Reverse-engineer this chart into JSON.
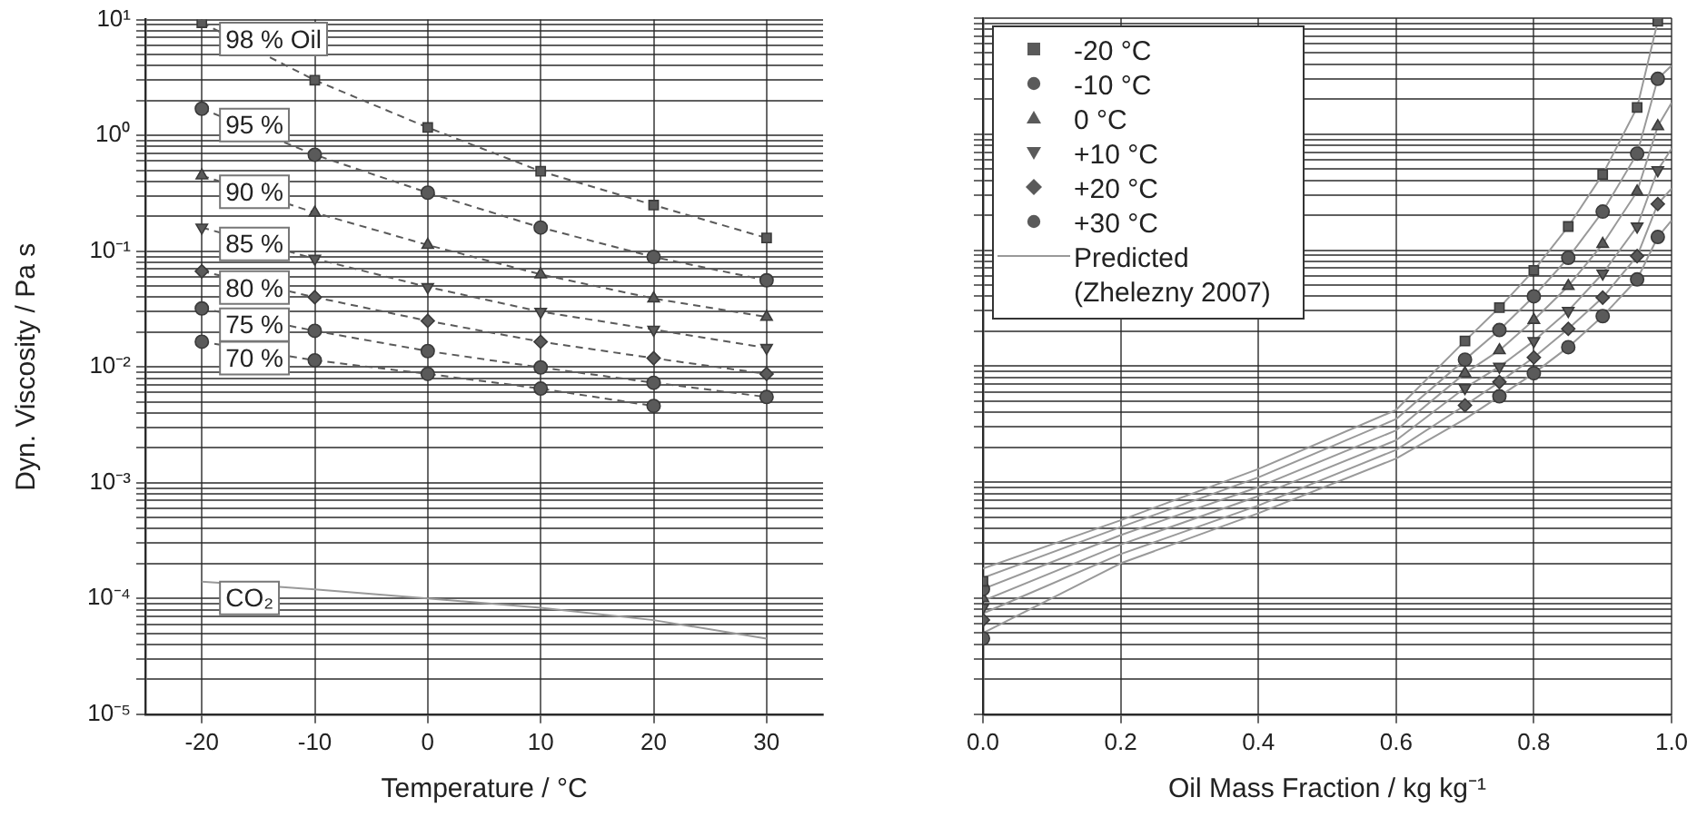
{
  "chart_data": [
    {
      "type": "line",
      "xlabel": "Temperature / °C",
      "ylabel": "Dyn. Viscosity / Pa s",
      "x": [
        -20,
        -10,
        0,
        10,
        20,
        30
      ],
      "xlim": [
        -25,
        35
      ],
      "xticks": [
        -20,
        -10,
        0,
        10,
        20,
        30
      ],
      "ylim": [
        1e-05,
        10
      ],
      "log": "y",
      "grid": true,
      "legend": false,
      "line_style": "dashed",
      "yticks": [
        {
          "value": 1e-05,
          "label": "10⁻⁵"
        },
        {
          "value": 2e-05,
          "label": null
        },
        {
          "value": 3e-05,
          "label": null
        },
        {
          "value": 4e-05,
          "label": null
        },
        {
          "value": 5e-05,
          "label": null
        },
        {
          "value": 6e-05,
          "label": null
        },
        {
          "value": 7e-05,
          "label": null
        },
        {
          "value": 8e-05,
          "label": null
        },
        {
          "value": 9e-05,
          "label": null
        },
        {
          "value": 0.0001,
          "label": "10⁻⁴"
        },
        {
          "value": 0.0002,
          "label": null
        },
        {
          "value": 0.0003,
          "label": null
        },
        {
          "value": 0.0004,
          "label": null
        },
        {
          "value": 0.0005,
          "label": null
        },
        {
          "value": 0.0006,
          "label": null
        },
        {
          "value": 0.0007,
          "label": null
        },
        {
          "value": 0.0008,
          "label": null
        },
        {
          "value": 0.0009,
          "label": null
        },
        {
          "value": 0.001,
          "label": "10⁻³"
        },
        {
          "value": 0.002,
          "label": null
        },
        {
          "value": 0.003,
          "label": null
        },
        {
          "value": 0.004,
          "label": null
        },
        {
          "value": 0.005,
          "label": null
        },
        {
          "value": 0.006,
          "label": null
        },
        {
          "value": 0.007,
          "label": null
        },
        {
          "value": 0.008,
          "label": null
        },
        {
          "value": 0.009,
          "label": null
        },
        {
          "value": 0.01,
          "label": "10⁻²"
        },
        {
          "value": 0.02,
          "label": null
        },
        {
          "value": 0.03,
          "label": null
        },
        {
          "value": 0.04,
          "label": null
        },
        {
          "value": 0.05,
          "label": null
        },
        {
          "value": 0.06,
          "label": null
        },
        {
          "value": 0.07,
          "label": null
        },
        {
          "value": 0.08,
          "label": null
        },
        {
          "value": 0.09,
          "label": null
        },
        {
          "value": 0.1,
          "label": "10⁻¹"
        },
        {
          "value": 0.2,
          "label": null
        },
        {
          "value": 0.3,
          "label": null
        },
        {
          "value": 0.4,
          "label": null
        },
        {
          "value": 0.5,
          "label": null
        },
        {
          "value": 0.6,
          "label": null
        },
        {
          "value": 0.7,
          "label": null
        },
        {
          "value": 0.8,
          "label": null
        },
        {
          "value": 0.9,
          "label": null
        },
        {
          "value": 1,
          "label": "10⁰"
        },
        {
          "value": 2,
          "label": null
        },
        {
          "value": 3,
          "label": null
        },
        {
          "value": 4,
          "label": null
        },
        {
          "value": 5,
          "label": null
        },
        {
          "value": 6,
          "label": null
        },
        {
          "value": 7,
          "label": null
        },
        {
          "value": 8,
          "label": null
        },
        {
          "value": 9,
          "label": null
        },
        {
          "value": 10,
          "label": "10¹"
        }
      ],
      "series": [
        {
          "name": "98 % Oil",
          "color": "#5a5a5a",
          "marker": "square",
          "values": [
            9.4,
            3.0,
            1.17,
            0.49,
            0.25,
            0.13
          ]
        },
        {
          "name": "95 %",
          "color": "#5a5a5a",
          "marker": "circle",
          "values": [
            1.7,
            0.68,
            0.32,
            0.16,
            0.089,
            0.056
          ]
        },
        {
          "name": "90 %",
          "color": "#5a5a5a",
          "marker": "triangle",
          "values": [
            0.45,
            0.215,
            0.113,
            0.063,
            0.039,
            0.027
          ]
        },
        {
          "name": "85 %",
          "color": "#5a5a5a",
          "marker": "triangle-down",
          "values": [
            0.16,
            0.086,
            0.049,
            0.03,
            0.021,
            0.0146
          ]
        },
        {
          "name": "80 %",
          "color": "#5a5a5a",
          "marker": "diamond",
          "values": [
            0.067,
            0.04,
            0.025,
            0.0165,
            0.0119,
            0.0087
          ]
        },
        {
          "name": "75 %",
          "color": "#5a5a5a",
          "marker": "circle",
          "values": [
            0.032,
            0.0205,
            0.0137,
            0.0099,
            0.0073,
            0.0055
          ]
        },
        {
          "name": "70 %",
          "color": "#5a5a5a",
          "marker": "circle",
          "values": [
            0.0165,
            0.0114,
            0.0087,
            0.0065,
            0.0046,
            null
          ]
        },
        {
          "name": "CO₂",
          "color": "#999999",
          "marker": "none",
          "line_style": "solid",
          "values": [
            0.00014,
            0.00012,
            0.0001,
            8.3e-05,
            6.5e-05,
            4.5e-05
          ]
        }
      ]
    },
    {
      "type": "scatter",
      "xlabel": "Oil Mass Fraction / kg kg⁻¹",
      "x": [
        0,
        0.7,
        0.75,
        0.8,
        0.85,
        0.9,
        0.95,
        0.98
      ],
      "xlim": [
        0,
        1
      ],
      "xticks": [
        {
          "value": 0,
          "label": "0.0"
        },
        {
          "value": 0.2,
          "label": "0.2"
        },
        {
          "value": 0.4,
          "label": "0.4"
        },
        {
          "value": 0.6,
          "label": "0.6"
        },
        {
          "value": 0.8,
          "label": "0.8"
        },
        {
          "value": 1,
          "label": "1.0"
        }
      ],
      "ylim": [
        1e-05,
        10
      ],
      "log": "y",
      "grid": true,
      "legend": "top left",
      "tick_labels": "x",
      "yticks": [
        {
          "value": 1e-05,
          "label": null
        },
        {
          "value": 2e-05,
          "label": null
        },
        {
          "value": 3e-05,
          "label": null
        },
        {
          "value": 4e-05,
          "label": null
        },
        {
          "value": 5e-05,
          "label": null
        },
        {
          "value": 6e-05,
          "label": null
        },
        {
          "value": 7e-05,
          "label": null
        },
        {
          "value": 8e-05,
          "label": null
        },
        {
          "value": 9e-05,
          "label": null
        },
        {
          "value": 0.0001,
          "label": null
        },
        {
          "value": 0.0002,
          "label": null
        },
        {
          "value": 0.0003,
          "label": null
        },
        {
          "value": 0.0004,
          "label": null
        },
        {
          "value": 0.0005,
          "label": null
        },
        {
          "value": 0.0006,
          "label": null
        },
        {
          "value": 0.0007,
          "label": null
        },
        {
          "value": 0.0008,
          "label": null
        },
        {
          "value": 0.0009,
          "label": null
        },
        {
          "value": 0.001,
          "label": null
        },
        {
          "value": 0.002,
          "label": null
        },
        {
          "value": 0.003,
          "label": null
        },
        {
          "value": 0.004,
          "label": null
        },
        {
          "value": 0.005,
          "label": null
        },
        {
          "value": 0.006,
          "label": null
        },
        {
          "value": 0.007,
          "label": null
        },
        {
          "value": 0.008,
          "label": null
        },
        {
          "value": 0.009,
          "label": null
        },
        {
          "value": 0.01,
          "label": null
        },
        {
          "value": 0.02,
          "label": null
        },
        {
          "value": 0.03,
          "label": null
        },
        {
          "value": 0.04,
          "label": null
        },
        {
          "value": 0.05,
          "label": null
        },
        {
          "value": 0.06,
          "label": null
        },
        {
          "value": 0.07,
          "label": null
        },
        {
          "value": 0.08,
          "label": null
        },
        {
          "value": 0.09,
          "label": null
        },
        {
          "value": 0.1,
          "label": null
        },
        {
          "value": 0.2,
          "label": null
        },
        {
          "value": 0.3,
          "label": null
        },
        {
          "value": 0.4,
          "label": null
        },
        {
          "value": 0.5,
          "label": null
        },
        {
          "value": 0.6,
          "label": null
        },
        {
          "value": 0.7,
          "label": null
        },
        {
          "value": 0.8,
          "label": null
        },
        {
          "value": 0.9,
          "label": null
        },
        {
          "value": 1,
          "label": null
        },
        {
          "value": 2,
          "label": null
        },
        {
          "value": 3,
          "label": null
        },
        {
          "value": 4,
          "label": null
        },
        {
          "value": 5,
          "label": null
        },
        {
          "value": 6,
          "label": null
        },
        {
          "value": 7,
          "label": null
        },
        {
          "value": 8,
          "label": null
        },
        {
          "value": 9,
          "label": null
        },
        {
          "value": 10,
          "label": null
        }
      ],
      "series": [
        {
          "name": "-20 °C",
          "color": "#5a5a5a",
          "marker": "square",
          "values": [
            0.00014,
            0.0165,
            0.032,
            0.067,
            0.16,
            0.45,
            1.7,
            9.4
          ]
        },
        {
          "name": "-10 °C",
          "color": "#5a5a5a",
          "marker": "circle",
          "values": [
            0.00012,
            0.0114,
            0.0205,
            0.04,
            0.086,
            0.215,
            0.68,
            3.0
          ]
        },
        {
          "name": "0 °C",
          "color": "#5a5a5a",
          "marker": "triangle",
          "values": [
            0.0001,
            0.0087,
            0.0137,
            0.025,
            0.049,
            0.113,
            0.32,
            1.17
          ]
        },
        {
          "name": "+10 °C",
          "color": "#5a5a5a",
          "marker": "triangle-down",
          "values": [
            8.3e-05,
            0.0065,
            0.0099,
            0.0165,
            0.03,
            0.063,
            0.16,
            0.49
          ]
        },
        {
          "name": "+20 °C",
          "color": "#5a5a5a",
          "marker": "diamond",
          "values": [
            6.5e-05,
            0.0046,
            0.0073,
            0.0119,
            0.021,
            0.039,
            0.089,
            0.25
          ]
        },
        {
          "name": "+30 °C",
          "color": "#5a5a5a",
          "marker": "circle",
          "values": [
            4.5e-05,
            null,
            0.0055,
            0.0087,
            0.0146,
            0.027,
            0.056,
            0.13
          ]
        },
        {
          "name": "Predicted (Zhelezny 2007)",
          "type": "line",
          "color": "#999999",
          "marker": "none",
          "x": [
            0,
            0.2,
            0.4,
            0.6,
            0.7,
            0.75,
            0.8,
            0.85,
            0.9,
            0.95,
            0.98
          ],
          "values": [
            0.00018,
            0.00047,
            0.0013,
            0.0042,
            0.0165,
            0.032,
            0.067,
            0.16,
            0.45,
            1.7,
            9.4
          ]
        },
        {
          "type": "line",
          "color": "#999999",
          "marker": "none",
          "x": [
            0,
            0.2,
            0.4,
            0.6,
            0.7,
            0.75,
            0.8,
            0.85,
            0.9,
            0.95,
            0.98,
            1.0
          ],
          "values": [
            0.00015,
            0.00041,
            0.0011,
            0.0035,
            0.0114,
            0.0205,
            0.04,
            0.086,
            0.215,
            0.68,
            3.0,
            3.9
          ]
        },
        {
          "type": "line",
          "color": "#999999",
          "marker": "none",
          "x": [
            0,
            0.2,
            0.4,
            0.6,
            0.7,
            0.75,
            0.8,
            0.85,
            0.9,
            0.95,
            0.98,
            1.0
          ],
          "values": [
            0.00012,
            0.00035,
            0.00091,
            0.0028,
            0.0087,
            0.0137,
            0.025,
            0.049,
            0.113,
            0.32,
            1.17,
            1.86
          ]
        },
        {
          "type": "line",
          "color": "#999999",
          "marker": "none",
          "x": [
            0,
            0.2,
            0.4,
            0.6,
            0.7,
            0.75,
            0.8,
            0.85,
            0.9,
            0.95,
            0.98,
            1.0
          ],
          "values": [
            9.5e-05,
            0.00029,
            0.00076,
            0.0023,
            0.0065,
            0.0099,
            0.0165,
            0.03,
            0.063,
            0.16,
            0.49,
            0.75
          ]
        },
        {
          "type": "line",
          "color": "#999999",
          "marker": "none",
          "x": [
            0,
            0.2,
            0.4,
            0.6,
            0.7,
            0.75,
            0.8,
            0.85,
            0.9,
            0.95,
            0.98,
            1.0
          ],
          "values": [
            7.4e-05,
            0.00024,
            0.00063,
            0.0019,
            0.0046,
            0.0073,
            0.0119,
            0.021,
            0.039,
            0.089,
            0.25,
            0.34
          ]
        },
        {
          "type": "line",
          "color": "#999999",
          "marker": "none",
          "x": [
            0,
            0.2,
            0.4,
            0.6,
            0.7,
            0.75,
            0.8,
            0.85,
            0.9,
            0.95,
            0.98,
            1.0
          ],
          "values": [
            5e-05,
            0.0002,
            0.00054,
            0.0016,
            0.0035,
            0.0055,
            0.0087,
            0.0146,
            0.027,
            0.056,
            0.13,
            0.18
          ]
        }
      ]
    }
  ]
}
